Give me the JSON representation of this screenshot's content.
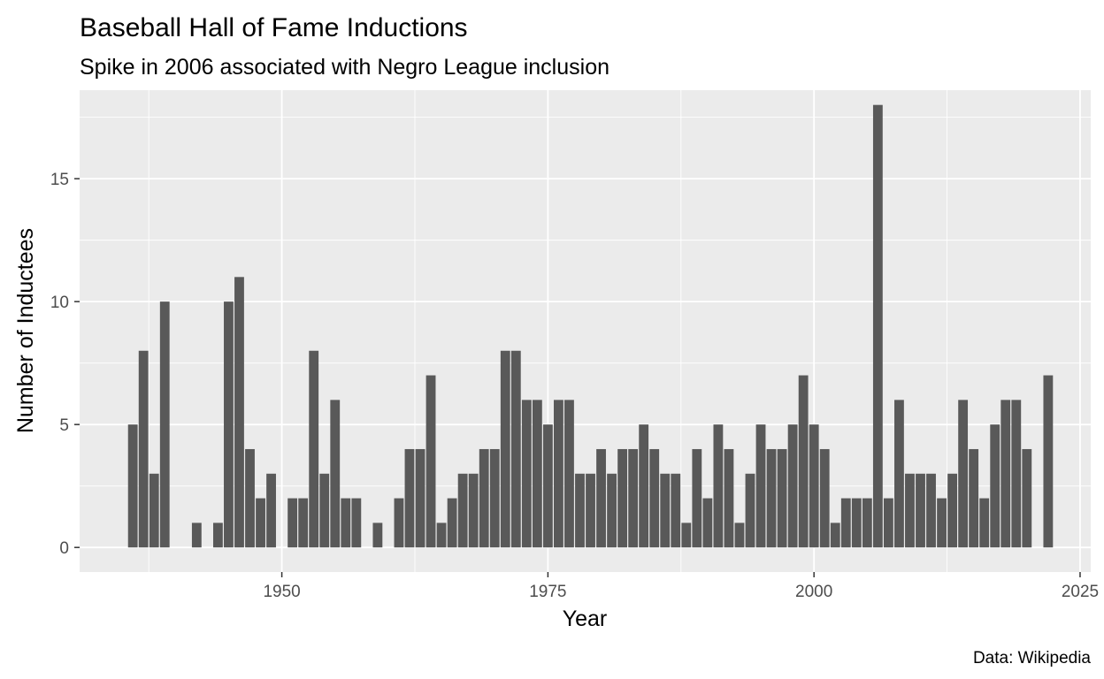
{
  "chart_data": {
    "type": "bar",
    "title": "Baseball Hall of Fame Inductions",
    "subtitle": "Spike in 2006 associated with Negro League inclusion",
    "xlabel": "Year",
    "ylabel": "Number of Inductees",
    "caption": "Data: Wikipedia",
    "xlim": [
      1931,
      2026
    ],
    "ylim": [
      -1,
      18.6
    ],
    "x_ticks": [
      1950,
      1975,
      2000,
      2025
    ],
    "y_ticks": [
      0,
      5,
      10,
      15
    ],
    "grid": true,
    "colors": {
      "bar": "#595959",
      "panel": "#ebebeb",
      "grid_major": "#ffffff",
      "tick_text": "#4d4d4d"
    },
    "x": [
      1936,
      1937,
      1938,
      1939,
      1942,
      1944,
      1945,
      1946,
      1947,
      1948,
      1949,
      1951,
      1952,
      1953,
      1954,
      1955,
      1956,
      1957,
      1959,
      1961,
      1962,
      1963,
      1964,
      1965,
      1966,
      1967,
      1968,
      1969,
      1970,
      1971,
      1972,
      1973,
      1974,
      1975,
      1976,
      1977,
      1978,
      1979,
      1980,
      1981,
      1982,
      1983,
      1984,
      1985,
      1986,
      1987,
      1988,
      1989,
      1990,
      1991,
      1992,
      1993,
      1994,
      1995,
      1996,
      1997,
      1998,
      1999,
      2000,
      2001,
      2002,
      2003,
      2004,
      2005,
      2006,
      2007,
      2008,
      2009,
      2010,
      2011,
      2012,
      2013,
      2014,
      2015,
      2016,
      2017,
      2018,
      2019,
      2020,
      2022
    ],
    "values": [
      5,
      8,
      3,
      10,
      1,
      1,
      10,
      11,
      4,
      2,
      3,
      2,
      2,
      8,
      3,
      6,
      2,
      2,
      1,
      2,
      4,
      4,
      7,
      1,
      2,
      3,
      3,
      4,
      4,
      8,
      8,
      6,
      6,
      5,
      6,
      6,
      3,
      3,
      4,
      3,
      4,
      4,
      5,
      4,
      3,
      3,
      1,
      4,
      2,
      5,
      4,
      1,
      3,
      5,
      4,
      4,
      5,
      7,
      5,
      4,
      1,
      2,
      2,
      2,
      18,
      2,
      6,
      3,
      3,
      3,
      2,
      3,
      6,
      4,
      2,
      5,
      6,
      6,
      4,
      7
    ]
  }
}
